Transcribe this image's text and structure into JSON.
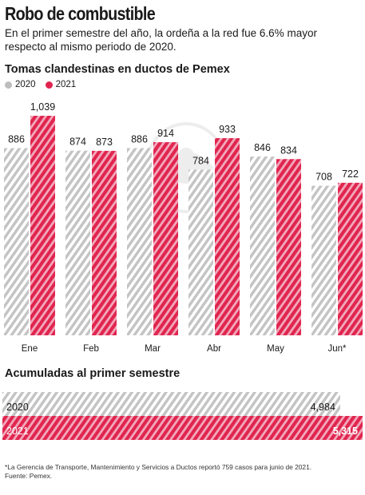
{
  "header": {
    "title": "Robo de combustible",
    "subtitle": "En el primer semestre del año, la ordeña a la red fue 6.6% mayor respecto al mismo periodo de 2020."
  },
  "chart_data": [
    {
      "type": "bar",
      "title": "Tomas clandestinas en ductos de Pemex",
      "categories": [
        "Ene",
        "Feb",
        "Mar",
        "Abr",
        "May",
        "Jun*"
      ],
      "series": [
        {
          "name": "2020",
          "values": [
            886,
            874,
            886,
            784,
            846,
            708
          ],
          "value_labels": [
            "886",
            "874",
            "886",
            "784",
            "846",
            "708"
          ],
          "color": "#bdbdbd",
          "pattern": "hatched-gray"
        },
        {
          "name": "2021",
          "values": [
            1039,
            873,
            914,
            933,
            834,
            722
          ],
          "value_labels": [
            "1,039",
            "873",
            "914",
            "933",
            "834",
            "722"
          ],
          "color": "#e0254f",
          "pattern": "hatched-red"
        }
      ],
      "ylim": [
        0,
        1039
      ],
      "legend": "top-left",
      "grid": false
    },
    {
      "type": "bar",
      "orientation": "horizontal",
      "title": "Acumuladas al primer semestre",
      "categories": [
        "2020",
        "2021"
      ],
      "values": [
        4984,
        5315
      ],
      "value_labels": [
        "4,984",
        "5,315"
      ],
      "colors": [
        "#bdbdbd",
        "#e0254f"
      ],
      "grid": false
    }
  ],
  "footnote": {
    "note": "*La Gerencia de Transporte, Mantenimiento y Servicios a Ductos reportó 759 casos para junio de 2021.",
    "source": "Fuente: Pemex."
  }
}
